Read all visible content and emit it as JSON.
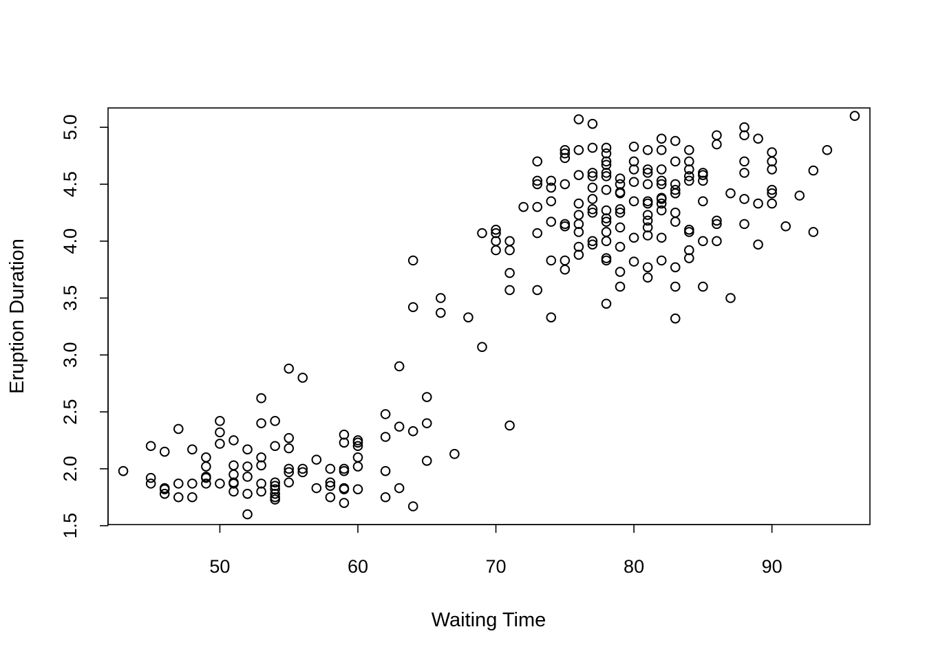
{
  "chart_data": {
    "type": "scatter",
    "xlabel": "Waiting Time",
    "ylabel": "Eruption Duration",
    "xlim": [
      41.9,
      97.1
    ],
    "ylim": [
      1.51,
      5.17
    ],
    "xticks": [
      50,
      60,
      70,
      80,
      90
    ],
    "yticks": [
      1.5,
      2.0,
      2.5,
      3.0,
      3.5,
      4.0,
      4.5,
      5.0
    ],
    "xtick_labels": [
      "50",
      "60",
      "70",
      "80",
      "90"
    ],
    "ytick_labels": [
      "1.5",
      "2.0",
      "2.5",
      "3.0",
      "3.5",
      "4.0",
      "4.5",
      "5.0"
    ],
    "grid": false,
    "legend": "none",
    "marker": "open-circle",
    "colors": {
      "stroke": "#000000",
      "background": "#ffffff"
    },
    "points": [
      [
        43,
        1.98
      ],
      [
        45,
        1.92
      ],
      [
        45,
        1.87
      ],
      [
        45,
        2.2
      ],
      [
        46,
        1.83
      ],
      [
        46,
        1.78
      ],
      [
        46,
        1.82
      ],
      [
        46,
        2.15
      ],
      [
        47,
        1.87
      ],
      [
        47,
        1.75
      ],
      [
        47,
        2.35
      ],
      [
        48,
        1.87
      ],
      [
        48,
        2.17
      ],
      [
        48,
        1.75
      ],
      [
        49,
        1.87
      ],
      [
        49,
        1.92
      ],
      [
        49,
        1.93
      ],
      [
        49,
        2.02
      ],
      [
        49,
        2.1
      ],
      [
        50,
        1.87
      ],
      [
        50,
        2.22
      ],
      [
        50,
        2.32
      ],
      [
        50,
        2.42
      ],
      [
        51,
        1.8
      ],
      [
        51,
        1.87
      ],
      [
        51,
        1.88
      ],
      [
        51,
        1.95
      ],
      [
        51,
        2.03
      ],
      [
        51,
        2.25
      ],
      [
        52,
        1.6
      ],
      [
        52,
        1.78
      ],
      [
        52,
        1.93
      ],
      [
        52,
        2.02
      ],
      [
        52,
        2.17
      ],
      [
        53,
        1.8
      ],
      [
        53,
        1.87
      ],
      [
        53,
        2.03
      ],
      [
        53,
        2.1
      ],
      [
        53,
        2.4
      ],
      [
        53,
        2.62
      ],
      [
        54,
        1.73
      ],
      [
        54,
        1.75
      ],
      [
        54,
        1.78
      ],
      [
        54,
        1.82
      ],
      [
        54,
        1.85
      ],
      [
        54,
        1.88
      ],
      [
        54,
        2.2
      ],
      [
        54,
        2.42
      ],
      [
        55,
        1.88
      ],
      [
        55,
        1.97
      ],
      [
        55,
        2.0
      ],
      [
        55,
        2.18
      ],
      [
        55,
        2.27
      ],
      [
        55,
        2.88
      ],
      [
        56,
        1.97
      ],
      [
        56,
        2.0
      ],
      [
        56,
        2.8
      ],
      [
        57,
        1.83
      ],
      [
        57,
        2.08
      ],
      [
        58,
        1.75
      ],
      [
        58,
        1.85
      ],
      [
        58,
        1.88
      ],
      [
        58,
        2.0
      ],
      [
        59,
        1.7
      ],
      [
        59,
        1.82
      ],
      [
        59,
        1.83
      ],
      [
        59,
        1.98
      ],
      [
        59,
        2.0
      ],
      [
        59,
        2.23
      ],
      [
        59,
        2.3
      ],
      [
        60,
        1.82
      ],
      [
        60,
        2.02
      ],
      [
        60,
        2.1
      ],
      [
        60,
        2.2
      ],
      [
        60,
        2.23
      ],
      [
        60,
        2.25
      ],
      [
        62,
        1.75
      ],
      [
        62,
        1.98
      ],
      [
        62,
        2.28
      ],
      [
        62,
        2.48
      ],
      [
        63,
        1.83
      ],
      [
        63,
        2.37
      ],
      [
        63,
        2.9
      ],
      [
        64,
        1.67
      ],
      [
        64,
        2.33
      ],
      [
        64,
        3.42
      ],
      [
        64,
        3.83
      ],
      [
        65,
        2.07
      ],
      [
        65,
        2.4
      ],
      [
        65,
        2.63
      ],
      [
        66,
        3.37
      ],
      [
        66,
        3.5
      ],
      [
        67,
        2.13
      ],
      [
        68,
        3.33
      ],
      [
        69,
        3.07
      ],
      [
        69,
        4.07
      ],
      [
        70,
        3.92
      ],
      [
        70,
        4.0
      ],
      [
        70,
        4.07
      ],
      [
        70,
        4.1
      ],
      [
        71,
        2.38
      ],
      [
        71,
        3.57
      ],
      [
        71,
        3.72
      ],
      [
        71,
        3.92
      ],
      [
        71,
        4.0
      ],
      [
        72,
        4.3
      ],
      [
        73,
        3.57
      ],
      [
        73,
        4.07
      ],
      [
        73,
        4.3
      ],
      [
        73,
        4.5
      ],
      [
        73,
        4.53
      ],
      [
        73,
        4.7
      ],
      [
        74,
        3.33
      ],
      [
        74,
        3.83
      ],
      [
        74,
        4.17
      ],
      [
        74,
        4.35
      ],
      [
        74,
        4.47
      ],
      [
        74,
        4.53
      ],
      [
        75,
        3.75
      ],
      [
        75,
        3.83
      ],
      [
        75,
        4.13
      ],
      [
        75,
        4.15
      ],
      [
        75,
        4.5
      ],
      [
        75,
        4.73
      ],
      [
        75,
        4.77
      ],
      [
        75,
        4.8
      ],
      [
        76,
        3.88
      ],
      [
        76,
        3.95
      ],
      [
        76,
        4.08
      ],
      [
        76,
        4.15
      ],
      [
        76,
        4.23
      ],
      [
        76,
        4.33
      ],
      [
        76,
        4.58
      ],
      [
        76,
        4.8
      ],
      [
        76,
        5.07
      ],
      [
        77,
        3.97
      ],
      [
        77,
        4.0
      ],
      [
        77,
        4.25
      ],
      [
        77,
        4.28
      ],
      [
        77,
        4.37
      ],
      [
        77,
        4.47
      ],
      [
        77,
        4.57
      ],
      [
        77,
        4.6
      ],
      [
        77,
        4.82
      ],
      [
        77,
        5.03
      ],
      [
        78,
        3.45
      ],
      [
        78,
        3.83
      ],
      [
        78,
        3.85
      ],
      [
        78,
        4.0
      ],
      [
        78,
        4.08
      ],
      [
        78,
        4.17
      ],
      [
        78,
        4.2
      ],
      [
        78,
        4.27
      ],
      [
        78,
        4.45
      ],
      [
        78,
        4.57
      ],
      [
        78,
        4.6
      ],
      [
        78,
        4.67
      ],
      [
        78,
        4.7
      ],
      [
        78,
        4.77
      ],
      [
        78,
        4.82
      ],
      [
        79,
        3.6
      ],
      [
        79,
        3.73
      ],
      [
        79,
        3.95
      ],
      [
        79,
        4.12
      ],
      [
        79,
        4.25
      ],
      [
        79,
        4.28
      ],
      [
        79,
        4.42
      ],
      [
        79,
        4.43
      ],
      [
        79,
        4.5
      ],
      [
        79,
        4.55
      ],
      [
        80,
        3.82
      ],
      [
        80,
        4.03
      ],
      [
        80,
        4.35
      ],
      [
        80,
        4.52
      ],
      [
        80,
        4.63
      ],
      [
        80,
        4.7
      ],
      [
        80,
        4.83
      ],
      [
        81,
        3.68
      ],
      [
        81,
        3.77
      ],
      [
        81,
        4.05
      ],
      [
        81,
        4.12
      ],
      [
        81,
        4.18
      ],
      [
        81,
        4.23
      ],
      [
        81,
        4.33
      ],
      [
        81,
        4.35
      ],
      [
        81,
        4.5
      ],
      [
        81,
        4.6
      ],
      [
        81,
        4.63
      ],
      [
        81,
        4.8
      ],
      [
        82,
        3.83
      ],
      [
        82,
        4.03
      ],
      [
        82,
        4.27
      ],
      [
        82,
        4.33
      ],
      [
        82,
        4.37
      ],
      [
        82,
        4.38
      ],
      [
        82,
        4.5
      ],
      [
        82,
        4.53
      ],
      [
        82,
        4.63
      ],
      [
        82,
        4.8
      ],
      [
        82,
        4.9
      ],
      [
        83,
        3.32
      ],
      [
        83,
        3.6
      ],
      [
        83,
        3.77
      ],
      [
        83,
        4.17
      ],
      [
        83,
        4.25
      ],
      [
        83,
        4.42
      ],
      [
        83,
        4.45
      ],
      [
        83,
        4.5
      ],
      [
        83,
        4.7
      ],
      [
        83,
        4.88
      ],
      [
        84,
        3.85
      ],
      [
        84,
        3.92
      ],
      [
        84,
        4.08
      ],
      [
        84,
        4.1
      ],
      [
        84,
        4.53
      ],
      [
        84,
        4.57
      ],
      [
        84,
        4.63
      ],
      [
        84,
        4.7
      ],
      [
        84,
        4.8
      ],
      [
        85,
        3.6
      ],
      [
        85,
        4.0
      ],
      [
        85,
        4.35
      ],
      [
        85,
        4.53
      ],
      [
        85,
        4.58
      ],
      [
        85,
        4.6
      ],
      [
        86,
        4.0
      ],
      [
        86,
        4.15
      ],
      [
        86,
        4.18
      ],
      [
        86,
        4.85
      ],
      [
        86,
        4.93
      ],
      [
        87,
        3.5
      ],
      [
        87,
        4.42
      ],
      [
        88,
        4.15
      ],
      [
        88,
        4.37
      ],
      [
        88,
        4.6
      ],
      [
        88,
        4.7
      ],
      [
        88,
        4.93
      ],
      [
        88,
        5.0
      ],
      [
        89,
        3.97
      ],
      [
        89,
        4.33
      ],
      [
        89,
        4.9
      ],
      [
        90,
        4.33
      ],
      [
        90,
        4.42
      ],
      [
        90,
        4.45
      ],
      [
        90,
        4.63
      ],
      [
        90,
        4.7
      ],
      [
        90,
        4.78
      ],
      [
        91,
        4.13
      ],
      [
        92,
        4.4
      ],
      [
        93,
        4.08
      ],
      [
        93,
        4.62
      ],
      [
        94,
        4.8
      ],
      [
        96,
        5.1
      ]
    ]
  }
}
